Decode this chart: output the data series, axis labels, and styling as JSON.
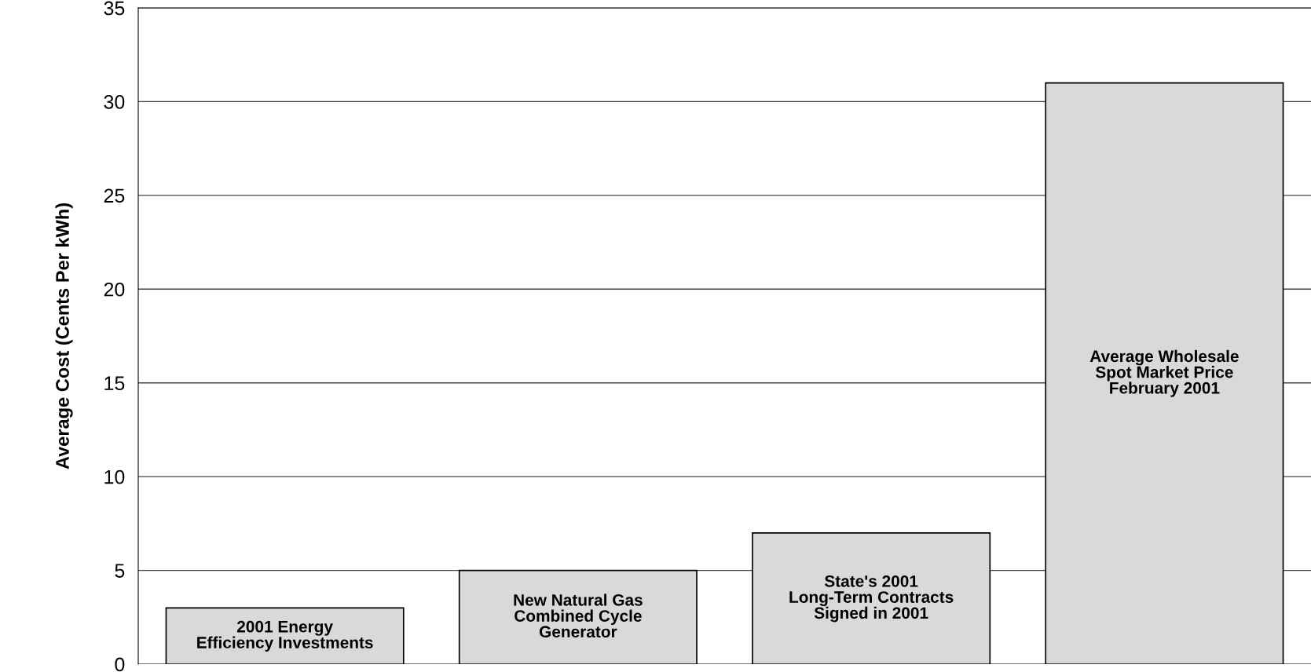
{
  "chart_data": {
    "type": "bar",
    "ylabel": "Average Cost (Cents Per kWh)",
    "categories": [
      "2001 Energy\nEfficiency Investments",
      "New Natural Gas\nCombined Cycle\nGenerator",
      "State's 2001\nLong-Term Contracts\nSigned in 2001",
      "Average Wholesale\nSpot Market Price\nFebruary 2001"
    ],
    "values": [
      3,
      5,
      7,
      31
    ],
    "color": "#d9d9d9",
    "ylim": [
      0,
      35
    ],
    "yticks": [
      0,
      5,
      10,
      15,
      20,
      25,
      30,
      35
    ],
    "grid": "y"
  }
}
